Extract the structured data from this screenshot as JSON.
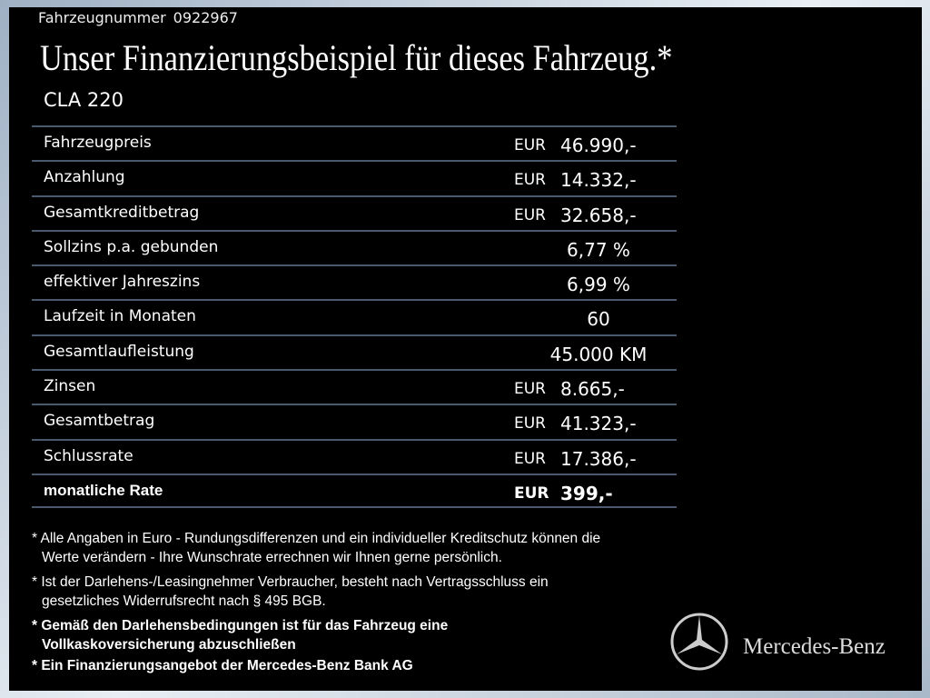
{
  "header": {
    "vehicle_number_label": "Fahrzeugnummer",
    "vehicle_number": "0922967",
    "title": "Unser Finanzierungsbeispiel für dieses Fahrzeug.*",
    "model": "CLA 220"
  },
  "table": {
    "rows": [
      {
        "label": "Fahrzeugpreis",
        "currency": "EUR",
        "value": "46.990,-"
      },
      {
        "label": "Anzahlung",
        "currency": "EUR",
        "value": "14.332,-"
      },
      {
        "label": "Gesamtkreditbetrag",
        "currency": "EUR",
        "value": "32.658,-"
      },
      {
        "label": "Sollzins p.a. gebunden",
        "value": "6,77 %"
      },
      {
        "label": "effektiver Jahreszins",
        "value": "6,99 %"
      },
      {
        "label": "Laufzeit in Monaten",
        "value": "60"
      },
      {
        "label": "Gesamtlaufleistung",
        "value": "45.000 KM"
      },
      {
        "label": "Zinsen",
        "currency": "EUR",
        "value": "8.665,-"
      },
      {
        "label": "Gesamtbetrag",
        "currency": "EUR",
        "value": "41.323,-"
      },
      {
        "label": "Schlussrate",
        "currency": "EUR",
        "value": "17.386,-"
      },
      {
        "label": "monatliche Rate",
        "currency": "EUR",
        "value": "399,-"
      }
    ]
  },
  "footnotes": [
    [
      "* Alle Angaben in Euro - Rundungsdifferenzen und ein individueller Kreditschutz können die",
      "Werte verändern - Ihre Wunschrate errechnen wir Ihnen gerne persönlich."
    ],
    [
      "* Ist der Darlehens-/Leasingnehmer Verbraucher, besteht nach Vertragsschluss ein",
      "gesetzliches Widerrufsrecht nach § 495 BGB."
    ],
    [
      "* Gemäß den Darlehensbedingungen ist für das Fahrzeug eine",
      "Vollkaskoversicherung abzuschließen"
    ],
    [
      "* Ein Finanzierungsangebot der Mercedes-Benz Bank AG"
    ]
  ],
  "brand": "Mercedes-Benz"
}
